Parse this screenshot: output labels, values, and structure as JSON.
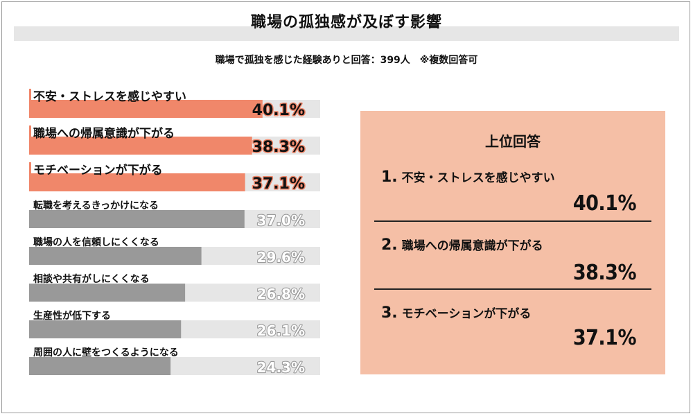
{
  "title": "職場の孤独感が及ぼす影響",
  "subtitle": "職場で孤独を感じた経験ありと回答：399人　※複数回答可",
  "colors": {
    "top": "#f0876a",
    "other": "#999999",
    "track": "#e6e6e6",
    "panel": "#f5bfa6"
  },
  "chart_data": {
    "type": "bar",
    "orientation": "horizontal",
    "categories": [
      "不安・ストレスを感じやすい",
      "職場への帰属意識が下がる",
      "モチベーションが下がる",
      "転職を考えるきっかけになる",
      "職場の人を信頼しにくくなる",
      "相談や共有がしにくくなる",
      "生産性が低下する",
      "周囲の人に壁をつくるようになる"
    ],
    "values": [
      40.1,
      38.3,
      37.1,
      37.0,
      29.6,
      26.8,
      26.1,
      24.3
    ],
    "value_labels": [
      "40.1%",
      "38.3%",
      "37.1%",
      "37.0%",
      "29.6%",
      "26.8%",
      "26.1%",
      "24.3%"
    ],
    "xlim": [
      0,
      50
    ]
  },
  "top_panel": {
    "title": "上位回答",
    "items": [
      {
        "num": "1.",
        "label": "不安・ストレスを感じやすい",
        "value": "40.1%"
      },
      {
        "num": "2.",
        "label": "職場への帰属意識が下がる",
        "value": "38.3%"
      },
      {
        "num": "3.",
        "label": "モチベーションが下がる",
        "value": "37.1%"
      }
    ]
  }
}
